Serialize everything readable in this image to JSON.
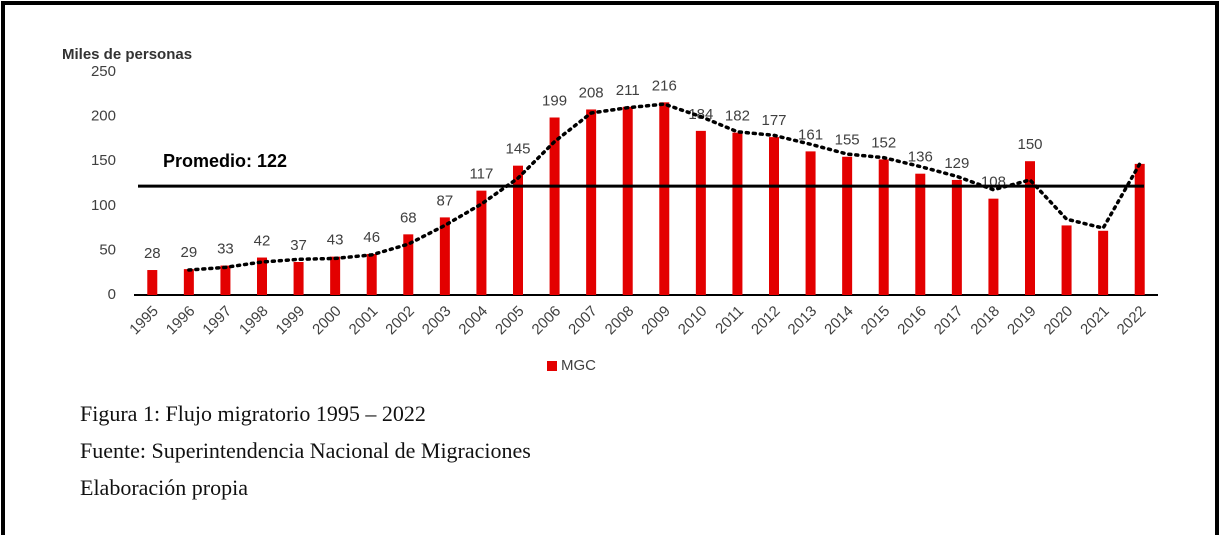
{
  "chart_data": {
    "type": "bar",
    "y_label": "Miles de personas",
    "categories": [
      "1995",
      "1996",
      "1997",
      "1998",
      "1999",
      "2000",
      "2001",
      "2002",
      "2003",
      "2004",
      "2005",
      "2006",
      "2007",
      "2008",
      "2009",
      "2010",
      "2011",
      "2012",
      "2013",
      "2014",
      "2015",
      "2016",
      "2017",
      "2018",
      "2019",
      "2020",
      "2021",
      "2022"
    ],
    "series": [
      {
        "name": "MGC",
        "color": "#e30000",
        "values": [
          28,
          29,
          33,
          42,
          37,
          43,
          46,
          68,
          87,
          117,
          145,
          199,
          208,
          211,
          216,
          184,
          182,
          177,
          161,
          155,
          152,
          136,
          129,
          108,
          150,
          78,
          72,
          147
        ],
        "value_labels": [
          "28",
          "29",
          "33",
          "42",
          "37",
          "43",
          "46",
          "68",
          "87",
          "117",
          "145",
          "199",
          "208",
          "211",
          "216",
          "184",
          "182",
          "177",
          "161",
          "155",
          "152",
          "136",
          "129",
          "108",
          "150",
          null,
          null,
          null
        ]
      },
      {
        "type": "line",
        "color": "#000000",
        "dotted": true,
        "values": [
          null,
          28,
          31,
          37,
          40,
          41,
          45,
          57,
          78,
          102,
          131,
          172,
          204,
          210,
          214,
          200,
          183,
          179,
          169,
          158,
          154,
          144,
          133,
          118,
          129,
          85,
          75,
          147
        ]
      }
    ],
    "average": {
      "value": 122,
      "label": "Promedio: 122",
      "color": "#000000"
    },
    "ylim": [
      0,
      250
    ],
    "yticks": [
      0,
      50,
      100,
      150,
      200,
      250
    ],
    "legend": "bottom"
  },
  "caption": [
    "Figura 1: Flujo migratorio 1995 – 2022",
    "Fuente: Superintendencia Nacional de Migraciones",
    "Elaboración propia"
  ]
}
